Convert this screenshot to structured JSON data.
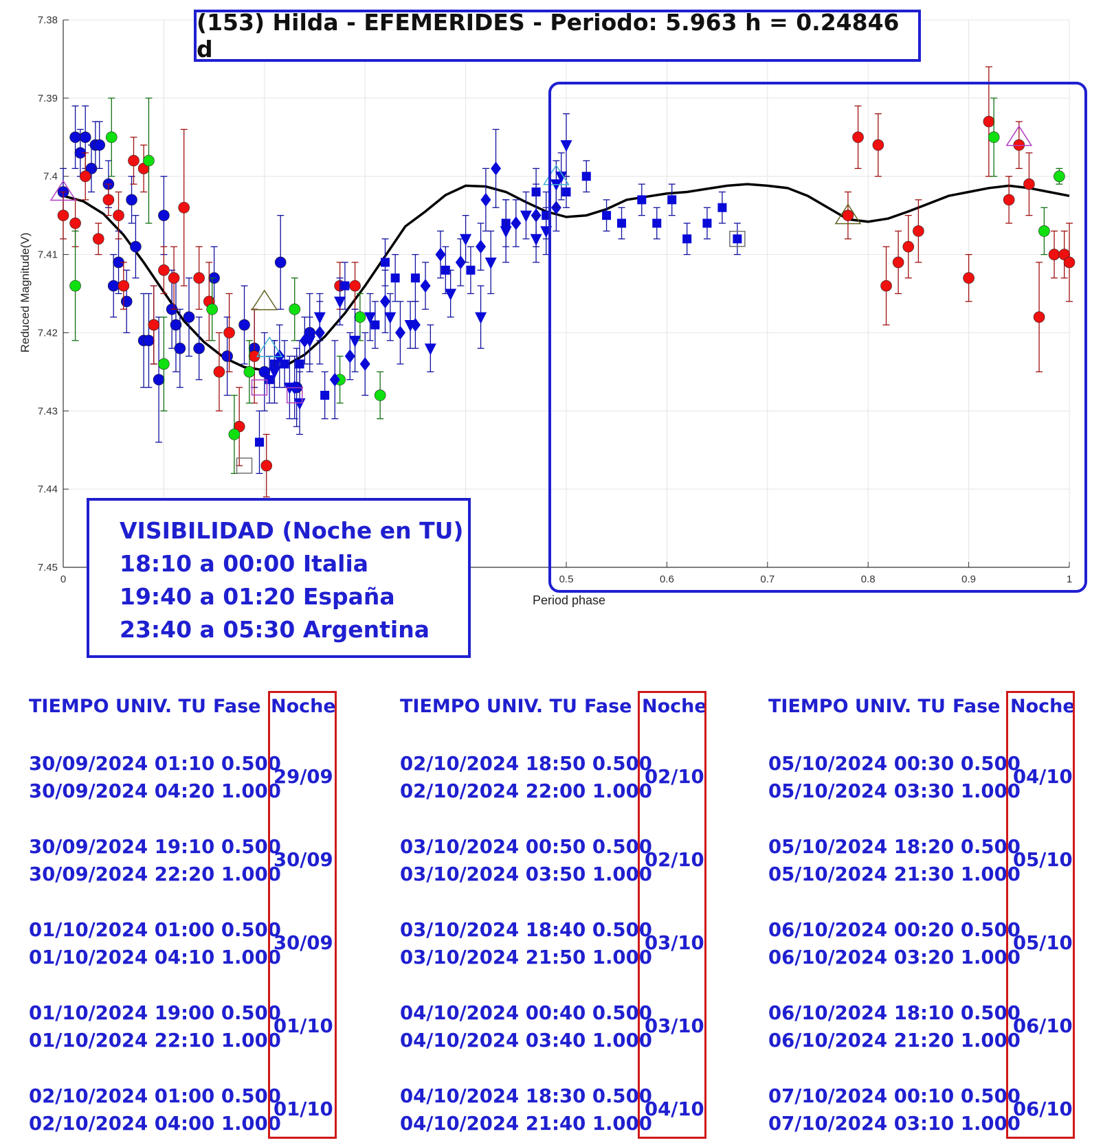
{
  "title": "(153) Hilda - EFEMERIDES - Periodo: 5.963 h = 0.24846 d",
  "visibility": {
    "heading": "VISIBILIDAD (Noche en TU)",
    "lines": [
      "18:10 a 00:00 Italia",
      "19:40 a 01:20 España",
      "23:40 a 05:30 Argentina"
    ]
  },
  "chart_data": {
    "type": "scatter",
    "xlabel": "Period phase",
    "ylabel": "Reduced Magnitude(V)",
    "xlim": [
      0,
      1
    ],
    "ylim": [
      7.38,
      7.45
    ],
    "y_reversed": true,
    "grid": true,
    "x_ticks": [
      "0",
      "0.5",
      "0.6",
      "0.7",
      "0.8",
      "0.9",
      "1"
    ],
    "x_tick_values": [
      0,
      0.5,
      0.6,
      0.7,
      0.8,
      0.9,
      1.0
    ],
    "y_ticks": [
      "7.38",
      "7.39",
      "7.4",
      "7.41",
      "7.42",
      "7.43",
      "7.44",
      "7.45"
    ],
    "y_tick_values": [
      7.38,
      7.39,
      7.4,
      7.41,
      7.42,
      7.43,
      7.44,
      7.45
    ],
    "colors": {
      "blue": "#0a0ad8",
      "red": "#f01010",
      "green": "#10e010",
      "fit": "#000000",
      "frame_blue": "#1f1fd0",
      "frame_red": "#d01818"
    },
    "fit_curve": {
      "x": [
        0,
        0.02,
        0.04,
        0.06,
        0.08,
        0.1,
        0.12,
        0.14,
        0.16,
        0.18,
        0.2,
        0.22,
        0.24,
        0.26,
        0.28,
        0.3,
        0.32,
        0.34,
        0.36,
        0.38,
        0.4,
        0.42,
        0.44,
        0.46,
        0.48,
        0.5,
        0.52,
        0.54,
        0.56,
        0.58,
        0.6,
        0.62,
        0.64,
        0.66,
        0.68,
        0.7,
        0.72,
        0.74,
        0.76,
        0.78,
        0.8,
        0.82,
        0.84,
        0.86,
        0.88,
        0.9,
        0.92,
        0.94,
        0.96,
        0.98,
        1.0
      ],
      "y": [
        7.4025,
        7.4032,
        7.4048,
        7.4075,
        7.411,
        7.4148,
        7.4185,
        7.4212,
        7.4232,
        7.4244,
        7.4248,
        7.4243,
        7.4228,
        7.4205,
        7.4175,
        7.414,
        7.4102,
        7.4064,
        7.4045,
        7.4024,
        7.4012,
        7.4013,
        7.402,
        7.4033,
        7.4045,
        7.4052,
        7.405,
        7.4042,
        7.403,
        7.4026,
        7.4022,
        7.402,
        7.4016,
        7.4012,
        7.401,
        7.4012,
        7.4015,
        7.4025,
        7.404,
        7.4055,
        7.4058,
        7.4054,
        7.4045,
        7.4035,
        7.4025,
        7.402,
        7.4015,
        7.4012,
        7.4015,
        7.402,
        7.4025
      ]
    },
    "series": [
      {
        "marker": "circle",
        "color": "blue",
        "points": [
          [
            0.0,
            7.402,
            0.003
          ],
          [
            0.012,
            7.395,
            0.004
          ],
          [
            0.017,
            7.397,
            0.003
          ],
          [
            0.022,
            7.395,
            0.004
          ],
          [
            0.028,
            7.399,
            0.003
          ],
          [
            0.032,
            7.396,
            0.003
          ],
          [
            0.036,
            7.396,
            0.003
          ],
          [
            0.045,
            7.401,
            0.003
          ],
          [
            0.05,
            7.414,
            0.004
          ],
          [
            0.055,
            7.411,
            0.004
          ],
          [
            0.063,
            7.416,
            0.004
          ],
          [
            0.068,
            7.403,
            0.003
          ],
          [
            0.072,
            7.409,
            0.004
          ],
          [
            0.08,
            7.421,
            0.006
          ],
          [
            0.085,
            7.421,
            0.006
          ],
          [
            0.09,
            7.419,
            0.005
          ],
          [
            0.095,
            7.426,
            0.008
          ],
          [
            0.1,
            7.405,
            0.005
          ],
          [
            0.108,
            7.417,
            0.005
          ],
          [
            0.112,
            7.419,
            0.006
          ],
          [
            0.116,
            7.422,
            0.005
          ],
          [
            0.125,
            7.418,
            0.005
          ],
          [
            0.135,
            7.422,
            0.004
          ],
          [
            0.15,
            7.413,
            0.004
          ],
          [
            0.163,
            7.423,
            0.005
          ],
          [
            0.18,
            7.419,
            0.005
          ],
          [
            0.19,
            7.422,
            0.005
          ],
          [
            0.2,
            7.425,
            0.005
          ],
          [
            0.216,
            7.411,
            0.006
          ],
          [
            0.232,
            7.427,
            0.005
          ],
          [
            0.245,
            7.42,
            0.005
          ]
        ]
      },
      {
        "marker": "circle",
        "color": "red",
        "points": [
          [
            0.0,
            7.405,
            0.003
          ],
          [
            0.012,
            7.406,
            0.003
          ],
          [
            0.022,
            7.4,
            0.003
          ],
          [
            0.035,
            7.408,
            0.002
          ],
          [
            0.045,
            7.403,
            0.002
          ],
          [
            0.055,
            7.405,
            0.003
          ],
          [
            0.06,
            7.414,
            0.003
          ],
          [
            0.07,
            7.398,
            0.003
          ],
          [
            0.08,
            7.399,
            0.003
          ],
          [
            0.09,
            7.419,
            0.005
          ],
          [
            0.1,
            7.412,
            0.003
          ],
          [
            0.11,
            7.413,
            0.004
          ],
          [
            0.12,
            7.404,
            0.01
          ],
          [
            0.135,
            7.413,
            0.004
          ],
          [
            0.145,
            7.416,
            0.005
          ],
          [
            0.155,
            7.425,
            0.005
          ],
          [
            0.165,
            7.42,
            0.005
          ],
          [
            0.175,
            7.432,
            0.005
          ],
          [
            0.19,
            7.423,
            0.006
          ],
          [
            0.202,
            7.437,
            0.004
          ],
          [
            0.275,
            7.414,
            0.003
          ],
          [
            0.29,
            7.414,
            0.003
          ],
          [
            0.78,
            7.405,
            0.003
          ],
          [
            0.79,
            7.395,
            0.004
          ],
          [
            0.81,
            7.396,
            0.004
          ],
          [
            0.818,
            7.414,
            0.005
          ],
          [
            0.83,
            7.411,
            0.004
          ],
          [
            0.84,
            7.409,
            0.004
          ],
          [
            0.85,
            7.407,
            0.004
          ],
          [
            0.9,
            7.413,
            0.003
          ],
          [
            0.92,
            7.393,
            0.007
          ],
          [
            0.94,
            7.403,
            0.003
          ],
          [
            0.95,
            7.396,
            0.003
          ],
          [
            0.96,
            7.401,
            0.004
          ],
          [
            0.97,
            7.418,
            0.007
          ],
          [
            0.985,
            7.41,
            0.003
          ],
          [
            0.995,
            7.41,
            0.003
          ],
          [
            1.0,
            7.411,
            0.005
          ]
        ]
      },
      {
        "marker": "circle",
        "color": "green",
        "points": [
          [
            0.012,
            7.414,
            0.007
          ],
          [
            0.048,
            7.395,
            0.005
          ],
          [
            0.085,
            7.398,
            0.008
          ],
          [
            0.1,
            7.424,
            0.006
          ],
          [
            0.148,
            7.417,
            0.004
          ],
          [
            0.17,
            7.433,
            0.005
          ],
          [
            0.185,
            7.425,
            0.004
          ],
          [
            0.23,
            7.417,
            0.004
          ],
          [
            0.275,
            7.426,
            0.003
          ],
          [
            0.295,
            7.418,
            0.003
          ],
          [
            0.315,
            7.428,
            0.003
          ],
          [
            0.925,
            7.395,
            0.005
          ],
          [
            0.975,
            7.407,
            0.003
          ],
          [
            0.99,
            7.4,
            0.001
          ]
        ]
      },
      {
        "marker": "square",
        "color": "blue",
        "points": [
          [
            0.195,
            7.434,
            0.004
          ],
          [
            0.205,
            7.426,
            0.003
          ],
          [
            0.21,
            7.424,
            0.003
          ],
          [
            0.22,
            7.424,
            0.003
          ],
          [
            0.235,
            7.424,
            0.003
          ],
          [
            0.26,
            7.428,
            0.003
          ],
          [
            0.28,
            7.414,
            0.003
          ],
          [
            0.31,
            7.419,
            0.003
          ],
          [
            0.32,
            7.411,
            0.003
          ],
          [
            0.33,
            7.413,
            0.003
          ],
          [
            0.35,
            7.413,
            0.003
          ],
          [
            0.38,
            7.412,
            0.003
          ],
          [
            0.405,
            7.412,
            0.003
          ],
          [
            0.44,
            7.406,
            0.003
          ],
          [
            0.47,
            7.402,
            0.003
          ],
          [
            0.48,
            7.405,
            0.003
          ],
          [
            0.5,
            7.402,
            0.002
          ],
          [
            0.52,
            7.4,
            0.002
          ],
          [
            0.54,
            7.405,
            0.002
          ],
          [
            0.555,
            7.406,
            0.002
          ],
          [
            0.575,
            7.403,
            0.002
          ],
          [
            0.59,
            7.406,
            0.002
          ],
          [
            0.605,
            7.403,
            0.002
          ],
          [
            0.62,
            7.408,
            0.002
          ],
          [
            0.64,
            7.406,
            0.002
          ],
          [
            0.655,
            7.404,
            0.002
          ],
          [
            0.67,
            7.408,
            0.002
          ]
        ]
      },
      {
        "marker": "diamond",
        "color": "blue",
        "points": [
          [
            0.215,
            7.423,
            0.004
          ],
          [
            0.23,
            7.427,
            0.004
          ],
          [
            0.24,
            7.421,
            0.003
          ],
          [
            0.255,
            7.42,
            0.004
          ],
          [
            0.27,
            7.426,
            0.005
          ],
          [
            0.285,
            7.423,
            0.003
          ],
          [
            0.3,
            7.424,
            0.004
          ],
          [
            0.32,
            7.416,
            0.004
          ],
          [
            0.335,
            7.42,
            0.004
          ],
          [
            0.35,
            7.419,
            0.003
          ],
          [
            0.36,
            7.414,
            0.003
          ],
          [
            0.375,
            7.41,
            0.003
          ],
          [
            0.395,
            7.411,
            0.003
          ],
          [
            0.415,
            7.409,
            0.003
          ],
          [
            0.42,
            7.403,
            0.004
          ],
          [
            0.43,
            7.399,
            0.005
          ],
          [
            0.45,
            7.406,
            0.003
          ],
          [
            0.47,
            7.405,
            0.004
          ],
          [
            0.49,
            7.404,
            0.003
          ]
        ]
      },
      {
        "marker": "triangle-down",
        "color": "blue",
        "points": [
          [
            0.21,
            7.425,
            0.004
          ],
          [
            0.225,
            7.427,
            0.004
          ],
          [
            0.235,
            7.429,
            0.004
          ],
          [
            0.245,
            7.421,
            0.003
          ],
          [
            0.255,
            7.418,
            0.003
          ],
          [
            0.275,
            7.416,
            0.003
          ],
          [
            0.29,
            7.421,
            0.004
          ],
          [
            0.305,
            7.418,
            0.003
          ],
          [
            0.325,
            7.418,
            0.003
          ],
          [
            0.345,
            7.419,
            0.003
          ],
          [
            0.365,
            7.422,
            0.003
          ],
          [
            0.385,
            7.415,
            0.003
          ],
          [
            0.4,
            7.408,
            0.003
          ],
          [
            0.415,
            7.418,
            0.004
          ],
          [
            0.425,
            7.411,
            0.004
          ],
          [
            0.44,
            7.407,
            0.004
          ],
          [
            0.46,
            7.405,
            0.003
          ],
          [
            0.47,
            7.408,
            0.003
          ],
          [
            0.48,
            7.407,
            0.003
          ],
          [
            0.49,
            7.401,
            0.003
          ],
          [
            0.495,
            7.4,
            0.003
          ],
          [
            0.5,
            7.396,
            0.004
          ]
        ]
      },
      {
        "marker": "triangle-up-open",
        "color": "magenta",
        "points": [
          [
            0.0,
            7.402,
            0
          ],
          [
            0.95,
            7.395,
            0
          ]
        ]
      },
      {
        "marker": "triangle-up-open",
        "color": "olive",
        "points": [
          [
            0.2,
            7.416,
            0
          ],
          [
            0.78,
            7.405,
            0
          ]
        ]
      },
      {
        "marker": "triangle-up-open",
        "color": "cyan",
        "points": [
          [
            0.205,
            7.422,
            0
          ],
          [
            0.49,
            7.4,
            0
          ]
        ]
      },
      {
        "marker": "square-open",
        "color": "magenta",
        "points": [
          [
            0.195,
            7.427,
            0
          ],
          [
            0.23,
            7.428,
            0
          ]
        ]
      },
      {
        "marker": "square-open",
        "color": "gray",
        "points": [
          [
            0.18,
            7.437,
            0
          ],
          [
            0.67,
            7.408,
            0
          ]
        ]
      }
    ]
  },
  "tables": [
    {
      "header": {
        "tiempo": "TIEMPO UNIV. TU",
        "fase": "Fase",
        "noche": "Noche"
      },
      "groups": [
        {
          "rows": [
            "30/09/2024  01:10 0.500",
            "30/09/2024  04:20 1.000"
          ],
          "noche": "29/09"
        },
        {
          "rows": [
            "30/09/2024  19:10 0.500",
            "30/09/2024  22:20 1.000"
          ],
          "noche": "30/09"
        },
        {
          "rows": [
            "01/10/2024  01:00 0.500",
            "01/10/2024  04:10 1.000"
          ],
          "noche": "30/09"
        },
        {
          "rows": [
            "01/10/2024  19:00 0.500",
            "01/10/2024  22:10 1.000"
          ],
          "noche": "01/10"
        },
        {
          "rows": [
            "02/10/2024  01:00 0.500",
            "02/10/2024  04:00 1.000"
          ],
          "noche": "01/10"
        }
      ]
    },
    {
      "header": {
        "tiempo": "TIEMPO UNIV. TU",
        "fase": "Fase",
        "noche": "Noche"
      },
      "groups": [
        {
          "rows": [
            "02/10/2024  18:50 0.500",
            "02/10/2024  22:00 1.000"
          ],
          "noche": "02/10"
        },
        {
          "rows": [
            "03/10/2024  00:50 0.500",
            "03/10/2024  03:50 1.000"
          ],
          "noche": "02/10"
        },
        {
          "rows": [
            "03/10/2024  18:40 0.500",
            "03/10/2024  21:50 1.000"
          ],
          "noche": "03/10"
        },
        {
          "rows": [
            "04/10/2024  00:40 0.500",
            "04/10/2024  03:40 1.000"
          ],
          "noche": "03/10"
        },
        {
          "rows": [
            "04/10/2024  18:30 0.500",
            "04/10/2024  21:40 1.000"
          ],
          "noche": "04/10"
        }
      ]
    },
    {
      "header": {
        "tiempo": "TIEMPO UNIV. TU",
        "fase": "Fase",
        "noche": "Noche"
      },
      "groups": [
        {
          "rows": [
            "05/10/2024  00:30 0.500",
            "05/10/2024  03:30 1.000"
          ],
          "noche": "04/10"
        },
        {
          "rows": [
            "05/10/2024  18:20 0.500",
            "05/10/2024  21:30 1.000"
          ],
          "noche": "05/10"
        },
        {
          "rows": [
            "06/10/2024  00:20 0.500",
            "06/10/2024  03:20 1.000"
          ],
          "noche": "05/10"
        },
        {
          "rows": [
            "06/10/2024  18:10 0.500",
            "06/10/2024  21:20 1.000"
          ],
          "noche": "06/10"
        },
        {
          "rows": [
            "07/10/2024  00:10 0.500",
            "07/10/2024  03:10 1.000"
          ],
          "noche": "06/10"
        }
      ]
    }
  ]
}
